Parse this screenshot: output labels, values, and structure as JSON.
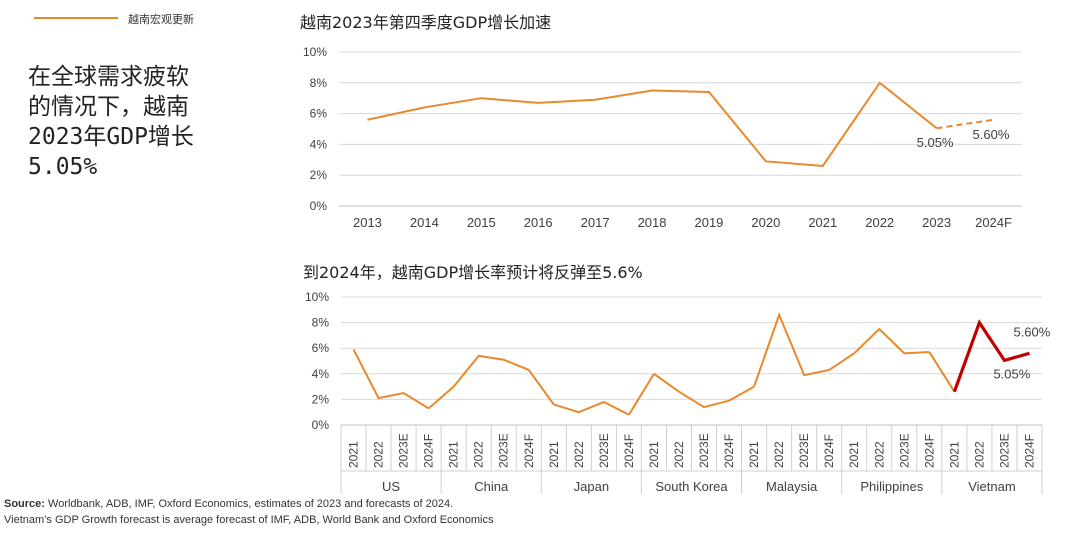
{
  "top_tag": "越南宏观更新",
  "headline": [
    "在全球需求疲软",
    "的情况下，越南",
    "2023年GDP增长",
    "5.05%"
  ],
  "colors": {
    "line": "#E8892B",
    "highlight": "#C00000",
    "grid": "#D9D9D9",
    "axis_text": "#404040"
  },
  "chart_data": [
    {
      "type": "line",
      "title": "越南2023年第四季度GDP增长加速",
      "categories": [
        "2013",
        "2014",
        "2015",
        "2016",
        "2017",
        "2018",
        "2019",
        "2020",
        "2021",
        "2022",
        "2023",
        "2024F"
      ],
      "values": [
        5.6,
        6.4,
        7.0,
        6.7,
        6.9,
        7.5,
        7.4,
        2.9,
        2.6,
        8.0,
        5.05,
        5.6
      ],
      "forecast_from_index": 10,
      "ylim": [
        0,
        10
      ],
      "yticks": [
        "0%",
        "2%",
        "4%",
        "6%",
        "8%",
        "10%"
      ],
      "annotations": [
        "5.05%",
        "5.60%"
      ]
    },
    {
      "type": "line",
      "title": "到2024年，越南GDP增长率预计将反弹至5.6%",
      "groups": [
        "US",
        "China",
        "Japan",
        "South Korea",
        "Malaysia",
        "Philippines",
        "Vietnam"
      ],
      "sub_categories": [
        "2021",
        "2022",
        "2023E",
        "2024F"
      ],
      "series": [
        {
          "name": "US",
          "values": [
            5.9,
            2.1,
            2.5,
            1.3
          ]
        },
        {
          "name": "China",
          "values": [
            3.0,
            5.4,
            5.1,
            4.3
          ]
        },
        {
          "name": "Japan",
          "values": [
            1.6,
            1.0,
            1.8,
            0.8
          ]
        },
        {
          "name": "South Korea",
          "values": [
            4.0,
            2.6,
            1.4,
            1.9
          ]
        },
        {
          "name": "Malaysia",
          "values": [
            3.0,
            8.6,
            3.9,
            4.3
          ]
        },
        {
          "name": "Philippines",
          "values": [
            5.6,
            7.5,
            5.6,
            5.7
          ]
        },
        {
          "name": "Vietnam",
          "values": [
            2.6,
            8.0,
            5.05,
            5.6
          ]
        }
      ],
      "highlight_group": "Vietnam",
      "ylim": [
        0,
        10
      ],
      "yticks": [
        "0%",
        "2%",
        "4%",
        "6%",
        "8%",
        "10%"
      ],
      "annotations": [
        "5.60%",
        "5.05%"
      ]
    }
  ],
  "source_label": "Source:",
  "source_text": " Worldbank, ADB, IMF, Oxford Economics, estimates of 2023 and forecasts of 2024.",
  "note": "Vietnam’s GDP Growth forecast is average forecast of IMF, ADB, World Bank and Oxford Economics"
}
